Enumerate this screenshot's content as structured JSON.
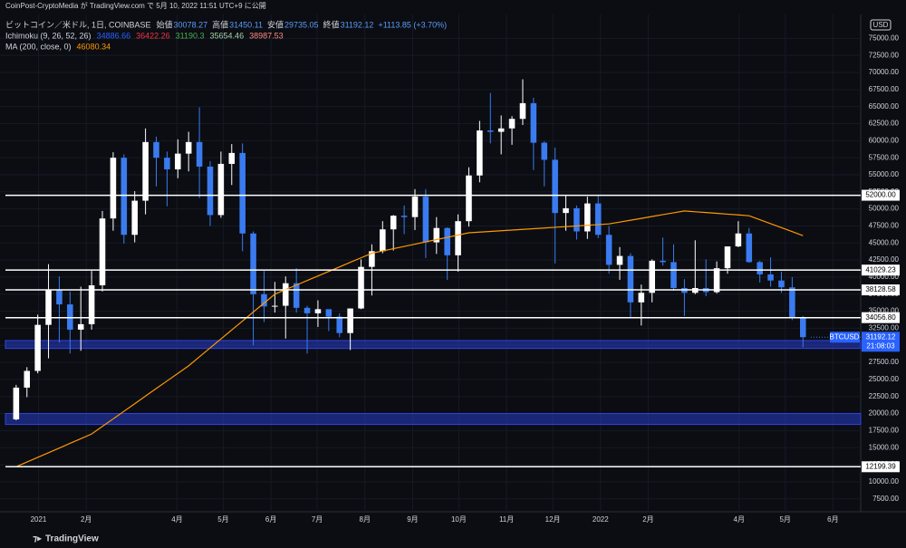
{
  "chart_data": {
    "type": "candlestick",
    "published": "CoinPost-CryptoMedia が TradingView.com で 5月 10, 2022 11:51 UTC+9 に公開",
    "title": "ビットコイン／米ドル, 1日, COINBASE",
    "ohlc_legend": [
      {
        "label": "始値",
        "value": 30078.27
      },
      {
        "label": "高値",
        "value": 31450.11
      },
      {
        "label": "安値",
        "value": 29735.05
      },
      {
        "label": "終値",
        "value": 31192.12
      }
    ],
    "change": "+1113.85 (+3.70%)",
    "ichimoku": {
      "name": "Ichimoku (9, 26, 52, 26)",
      "values": [
        34886.66,
        36422.26,
        31190.3,
        35654.46,
        38987.53
      ],
      "colors": [
        "#2962ff",
        "#f23645",
        "#4caf50",
        "#a5d6a7",
        "#ff8a80"
      ]
    },
    "currency": "USD",
    "symbol": "BTCUSD",
    "last": 31192.12,
    "countdown": "21:08:03",
    "footer": "TradingView",
    "up_color": "#ffffff",
    "down_color": "#3a7bf0",
    "x": [
      "2020-12-14",
      "2020-12-21",
      "2020-12-28",
      "2021-01-04",
      "2021-01-11",
      "2021-01-18",
      "2021-01-25",
      "2021-02-01",
      "2021-02-08",
      "2021-02-15",
      "2021-02-22",
      "2021-03-01",
      "2021-03-08",
      "2021-03-15",
      "2021-03-22",
      "2021-03-29",
      "2021-04-05",
      "2021-04-12",
      "2021-04-19",
      "2021-04-26",
      "2021-05-03",
      "2021-05-10",
      "2021-05-17",
      "2021-05-24",
      "2021-05-31",
      "2021-06-07",
      "2021-06-14",
      "2021-06-21",
      "2021-06-28",
      "2021-07-05",
      "2021-07-12",
      "2021-07-19",
      "2021-07-26",
      "2021-08-02",
      "2021-08-09",
      "2021-08-16",
      "2021-08-23",
      "2021-08-30",
      "2021-09-06",
      "2021-09-13",
      "2021-09-20",
      "2021-09-27",
      "2021-10-04",
      "2021-10-11",
      "2021-10-18",
      "2021-10-25",
      "2021-11-01",
      "2021-11-08",
      "2021-11-15",
      "2021-11-22",
      "2021-11-29",
      "2021-12-06",
      "2021-12-13",
      "2021-12-20",
      "2021-12-27",
      "2022-01-03",
      "2022-01-10",
      "2022-01-17",
      "2022-01-24",
      "2022-01-31",
      "2022-02-07",
      "2022-02-14",
      "2022-02-21",
      "2022-02-28",
      "2022-03-07",
      "2022-03-14",
      "2022-03-21",
      "2022-03-28",
      "2022-04-04",
      "2022-04-11",
      "2022-04-18",
      "2022-04-25",
      "2022-05-02",
      "2022-05-09"
    ],
    "open": [
      19150,
      23800,
      26250,
      33000,
      38200,
      36000,
      32300,
      33100,
      38800,
      48600,
      57500,
      46200,
      51200,
      59800,
      57500,
      55800,
      58100,
      59800,
      56200,
      49100,
      56600,
      58200,
      46400,
      37500,
      35700,
      35800,
      39100,
      35500,
      34700,
      35300,
      34200,
      31800,
      35400,
      41500,
      43800,
      47000,
      49000,
      48800,
      51800,
      45100,
      47200,
      43200,
      48200,
      54900,
      61500,
      61300,
      61800,
      63200,
      65500,
      59700,
      57200,
      49400,
      50100,
      46700,
      50800,
      46200,
      41800,
      43100,
      36300,
      37700,
      42400,
      42200,
      38400,
      37700,
      38400,
      37800,
      41300,
      44500,
      46400,
      42200,
      40400,
      39500,
      38500,
      34100
    ],
    "high": [
      24200,
      26800,
      34500,
      41900,
      40100,
      37900,
      38600,
      40900,
      49700,
      58300,
      58000,
      52600,
      61800,
      60600,
      58400,
      60200,
      61300,
      64900,
      57000,
      58400,
      59500,
      59600,
      46700,
      40900,
      39300,
      40100,
      41300,
      35800,
      36600,
      35100,
      34700,
      35400,
      42600,
      44800,
      48200,
      49100,
      50500,
      52900,
      52900,
      48800,
      47300,
      49200,
      56100,
      62900,
      67000,
      63700,
      63600,
      69000,
      66300,
      59900,
      59000,
      51900,
      50500,
      51800,
      52100,
      47500,
      44400,
      43500,
      38900,
      42600,
      45800,
      44800,
      39700,
      45400,
      42600,
      42300,
      44200,
      48200,
      47200,
      42400,
      42900,
      40800,
      40000,
      34300
    ],
    "low": [
      19000,
      22400,
      25900,
      28100,
      30400,
      28800,
      29200,
      32300,
      37900,
      46800,
      44900,
      45100,
      49200,
      53300,
      50400,
      54500,
      55500,
      51600,
      47500,
      48700,
      53500,
      43800,
      30000,
      33400,
      34800,
      31000,
      34800,
      28800,
      32700,
      32100,
      31200,
      29300,
      35300,
      37300,
      43500,
      43900,
      46300,
      46900,
      42800,
      43400,
      39600,
      40800,
      47400,
      53900,
      59600,
      58000,
      59400,
      62300,
      55700,
      53300,
      42000,
      46800,
      45500,
      45600,
      45700,
      40500,
      39600,
      34000,
      32900,
      36300,
      41700,
      38000,
      34300,
      37500,
      37200,
      37600,
      40500,
      44400,
      42100,
      39200,
      38600,
      37700,
      33700,
      29735
    ],
    "close": [
      23800,
      26250,
      33000,
      38200,
      36000,
      32300,
      33100,
      38800,
      48600,
      57500,
      46200,
      51200,
      59800,
      57500,
      55800,
      58100,
      59800,
      56200,
      49100,
      56600,
      58200,
      46400,
      37500,
      35700,
      35800,
      39100,
      35500,
      34700,
      35300,
      34200,
      31800,
      35400,
      41500,
      43800,
      47000,
      49000,
      48800,
      51800,
      45100,
      47200,
      43200,
      48200,
      54900,
      61500,
      61300,
      61800,
      63200,
      65500,
      59700,
      57200,
      49400,
      50100,
      46700,
      50800,
      46200,
      41800,
      43100,
      36300,
      37700,
      42400,
      42200,
      38400,
      37700,
      38400,
      37800,
      41300,
      44500,
      46400,
      42200,
      40400,
      39500,
      38500,
      34100,
      31192
    ],
    "ma": {
      "name": "MA (200, close, 0)",
      "last": 46080.34,
      "color": "#ff9800",
      "values": [
        12200,
        12890,
        13570,
        14260,
        14940,
        15630,
        16310,
        17000,
        18110,
        19220,
        20330,
        21440,
        22560,
        23670,
        24780,
        25890,
        27000,
        28310,
        29630,
        30940,
        32250,
        33560,
        34880,
        36190,
        37500,
        38170,
        38830,
        39500,
        40170,
        40830,
        41500,
        42170,
        42830,
        43500,
        43830,
        44170,
        44500,
        44830,
        45170,
        45500,
        45830,
        46170,
        46500,
        46600,
        46700,
        46800,
        46900,
        47000,
        47100,
        47200,
        47300,
        47400,
        47500,
        47600,
        47700,
        47800,
        48070,
        48340,
        48610,
        48890,
        49160,
        49430,
        49700,
        49580,
        49470,
        49350,
        49230,
        49120,
        49000,
        48420,
        47840,
        47260,
        46670,
        46080
      ]
    },
    "levels": [
      {
        "value": 52000,
        "label": "52000.00"
      },
      {
        "value": 41029.23,
        "label": "41029.23"
      },
      {
        "value": 38128.58,
        "label": "38128.58"
      },
      {
        "value": 34056.8,
        "label": "34056.80"
      },
      {
        "value": 12199.39,
        "label": "12199.39"
      }
    ],
    "zones": [
      {
        "from": 29550,
        "to": 30700
      },
      {
        "from": 18400,
        "to": 20000
      }
    ],
    "ylim": [
      5600,
      78500
    ],
    "yticks": [
      {
        "value": 7500,
        "label": "7500.00"
      },
      {
        "value": 10000,
        "label": "10000.00"
      },
      {
        "value": 12500,
        "label": "12500.00"
      },
      {
        "value": 15000,
        "label": "15000.00"
      },
      {
        "value": 17500,
        "label": "17500.00"
      },
      {
        "value": 20000,
        "label": "20000.00"
      },
      {
        "value": 22500,
        "label": "22500.00"
      },
      {
        "value": 25000,
        "label": "25000.00"
      },
      {
        "value": 27500,
        "label": "27500.00"
      },
      {
        "value": 30000,
        "label": "30000.00"
      },
      {
        "value": 32500,
        "label": "32500.00"
      },
      {
        "value": 35000,
        "label": "35000.00"
      },
      {
        "value": 37500,
        "label": "37500.00"
      },
      {
        "value": 40000,
        "label": "40000.00"
      },
      {
        "value": 42500,
        "label": "42500.00"
      },
      {
        "value": 45000,
        "label": "45000.00"
      },
      {
        "value": 47500,
        "label": "47500.00"
      },
      {
        "value": 50000,
        "label": "50000.00"
      },
      {
        "value": 52500,
        "label": "52500.00"
      },
      {
        "value": 55000,
        "label": "55000.00"
      },
      {
        "value": 57500,
        "label": "57500.00"
      },
      {
        "value": 60000,
        "label": "60000.00"
      },
      {
        "value": 62500,
        "label": "62500.00"
      },
      {
        "value": 65000,
        "label": "65000.00"
      },
      {
        "value": 67500,
        "label": "67500.00"
      },
      {
        "value": 70000,
        "label": "70000.00"
      },
      {
        "value": 72500,
        "label": "72500.00"
      },
      {
        "value": 75000,
        "label": "75000.00"
      }
    ],
    "xlim": [
      "2020-12-07",
      "2022-06-19"
    ],
    "xticks": [
      {
        "value": "2021-01-01",
        "label": "2021"
      },
      {
        "value": "2021-02-01",
        "label": "2月"
      },
      {
        "value": "2021-04-01",
        "label": "4月"
      },
      {
        "value": "2021-05-01",
        "label": "5月"
      },
      {
        "value": "2021-06-01",
        "label": "6月"
      },
      {
        "value": "2021-07-01",
        "label": "7月"
      },
      {
        "value": "2021-08-01",
        "label": "8月"
      },
      {
        "value": "2021-09-01",
        "label": "9月"
      },
      {
        "value": "2021-10-01",
        "label": "10月"
      },
      {
        "value": "2021-11-01",
        "label": "11月"
      },
      {
        "value": "2021-12-01",
        "label": "12月"
      },
      {
        "value": "2022-01-01",
        "label": "2022"
      },
      {
        "value": "2022-02-01",
        "label": "2月"
      },
      {
        "value": "2022-04-01",
        "label": "4月"
      },
      {
        "value": "2022-05-01",
        "label": "5月"
      },
      {
        "value": "2022-06-01",
        "label": "6月"
      }
    ],
    "grid": true
  }
}
